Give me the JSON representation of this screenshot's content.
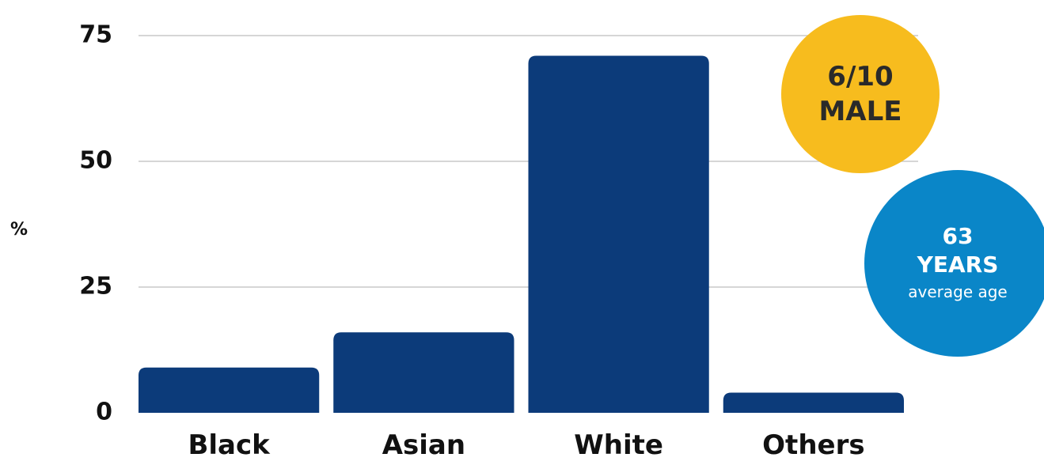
{
  "chart_data": {
    "type": "bar",
    "categories": [
      "Black",
      "Asian",
      "White",
      "Others"
    ],
    "values": [
      9,
      16,
      71,
      4
    ],
    "ylabel": "%",
    "xlabel": "",
    "ylim": [
      0,
      75
    ],
    "yticks": [
      "0",
      "25",
      "50",
      "75"
    ],
    "grid": true,
    "bar_color": "#0c3b7a",
    "grid_color": "#c8c8c8"
  },
  "badges": {
    "male": {
      "line1": "6/10",
      "line2": "MALE",
      "color": "#f7bc1e"
    },
    "age": {
      "line1": "63",
      "line2": "YEARS",
      "line3": "average age",
      "color": "#0a86c8"
    }
  }
}
